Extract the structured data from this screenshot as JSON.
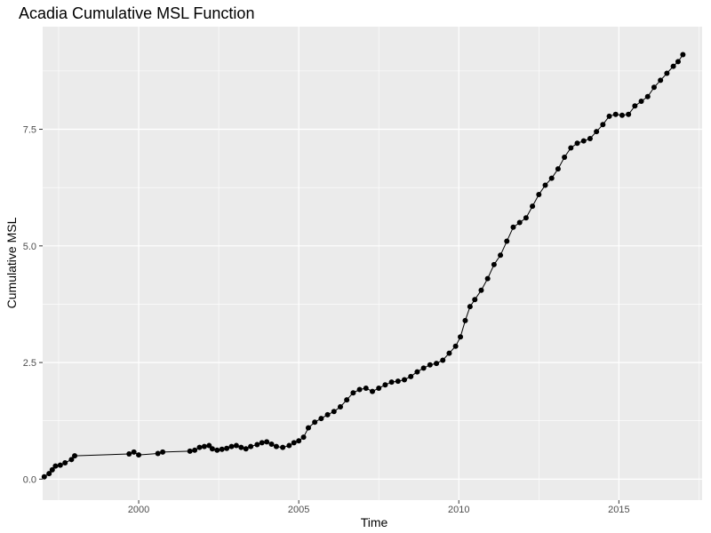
{
  "chart_data": {
    "type": "line",
    "title": "Acadia Cumulative MSL Function",
    "xlabel": "Time",
    "ylabel": "Cumulative MSL",
    "xlim": [
      1997.0,
      2017.6
    ],
    "ylim": [
      -0.45,
      9.7
    ],
    "x_ticks": [
      2000,
      2005,
      2010,
      2015
    ],
    "x_tick_labels": [
      "2000",
      "2005",
      "2010",
      "2015"
    ],
    "y_ticks": [
      0.0,
      2.5,
      5.0,
      7.5
    ],
    "y_tick_labels": [
      "0.0",
      "2.5",
      "5.0",
      "7.5"
    ],
    "grid": true,
    "colors": {
      "panel": "#ebebeb",
      "grid": "#ffffff",
      "series": "#000000"
    },
    "series": [
      {
        "markers": true,
        "x": [
          1997.05,
          1997.2,
          1997.3,
          1997.4,
          1997.55,
          1997.7,
          1997.9,
          1998.0,
          1999.7,
          1999.85,
          2000.0,
          2000.6,
          2000.75,
          2001.6,
          2001.75,
          2001.9,
          2002.05,
          2002.2,
          2002.3,
          2002.45,
          2002.6,
          2002.75,
          2002.9,
          2003.05,
          2003.2,
          2003.35,
          2003.5,
          2003.7,
          2003.85,
          2004.0,
          2004.15,
          2004.3,
          2004.5,
          2004.7,
          2004.85,
          2005.0,
          2005.15,
          2005.3,
          2005.5,
          2005.7,
          2005.9,
          2006.1,
          2006.3,
          2006.5,
          2006.7,
          2006.9,
          2007.1,
          2007.3,
          2007.5,
          2007.7,
          2007.9,
          2008.1,
          2008.3,
          2008.5,
          2008.7,
          2008.9,
          2009.1,
          2009.3,
          2009.5,
          2009.7,
          2009.9,
          2010.05,
          2010.2,
          2010.35,
          2010.5,
          2010.7,
          2010.9,
          2011.1,
          2011.3,
          2011.5,
          2011.7,
          2011.9,
          2012.1,
          2012.3,
          2012.5,
          2012.7,
          2012.9,
          2013.1,
          2013.3,
          2013.5,
          2013.7,
          2013.9,
          2014.1,
          2014.3,
          2014.5,
          2014.7,
          2014.9,
          2015.1,
          2015.3,
          2015.5,
          2015.7,
          2015.9,
          2016.1,
          2016.3,
          2016.5,
          2016.7,
          2016.85,
          2017.0
        ],
        "y": [
          0.05,
          0.12,
          0.2,
          0.28,
          0.3,
          0.35,
          0.42,
          0.5,
          0.54,
          0.58,
          0.52,
          0.55,
          0.58,
          0.6,
          0.62,
          0.68,
          0.7,
          0.72,
          0.65,
          0.62,
          0.64,
          0.66,
          0.7,
          0.72,
          0.68,
          0.65,
          0.7,
          0.74,
          0.78,
          0.8,
          0.75,
          0.7,
          0.68,
          0.72,
          0.78,
          0.82,
          0.9,
          1.1,
          1.22,
          1.3,
          1.38,
          1.45,
          1.55,
          1.7,
          1.85,
          1.92,
          1.95,
          1.88,
          1.95,
          2.02,
          2.08,
          2.1,
          2.13,
          2.2,
          2.3,
          2.38,
          2.45,
          2.48,
          2.55,
          2.7,
          2.85,
          3.05,
          3.4,
          3.7,
          3.85,
          4.05,
          4.3,
          4.6,
          4.8,
          5.1,
          5.4,
          5.5,
          5.6,
          5.85,
          6.1,
          6.3,
          6.45,
          6.65,
          6.9,
          7.1,
          7.2,
          7.25,
          7.3,
          7.45,
          7.6,
          7.78,
          7.82,
          7.8,
          7.82,
          8.0,
          8.1,
          8.2,
          8.4,
          8.55,
          8.7,
          8.85,
          8.95,
          9.1
        ]
      }
    ]
  }
}
